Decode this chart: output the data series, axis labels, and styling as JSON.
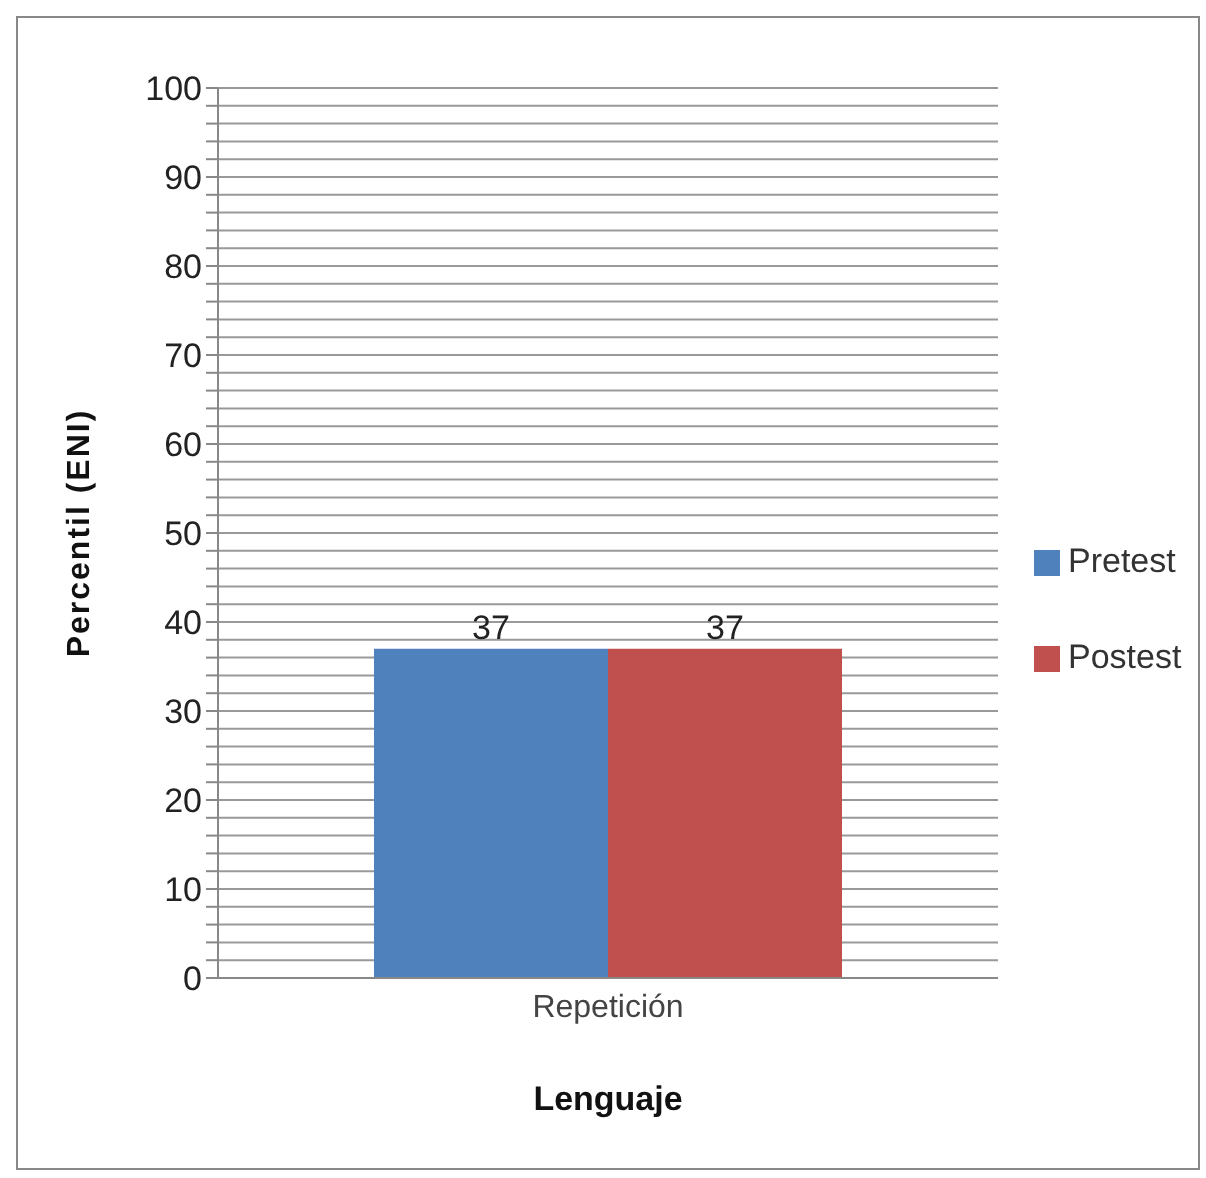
{
  "chart_data": {
    "type": "bar",
    "xlabel": "Lenguaje",
    "ylabel": "Percentil (ENI)",
    "categories": [
      "Repetición"
    ],
    "series": [
      {
        "name": "Pretest",
        "color": "#4f81bd",
        "values": [
          37
        ]
      },
      {
        "name": "Postest",
        "color": "#c0504d",
        "values": [
          37
        ]
      }
    ],
    "ylim": [
      0,
      100
    ],
    "yticks": [
      0,
      {
        "value": 2,
        "label": null
      },
      {
        "value": 4,
        "label": null
      },
      {
        "value": 6,
        "label": null
      },
      {
        "value": 8,
        "label": null
      },
      10,
      {
        "value": 12,
        "label": null
      },
      {
        "value": 14,
        "label": null
      },
      {
        "value": 16,
        "label": null
      },
      {
        "value": 18,
        "label": null
      },
      20,
      {
        "value": 22,
        "label": null
      },
      {
        "value": 24,
        "label": null
      },
      {
        "value": 26,
        "label": null
      },
      {
        "value": 28,
        "label": null
      },
      30,
      {
        "value": 32,
        "label": null
      },
      {
        "value": 34,
        "label": null
      },
      {
        "value": 36,
        "label": null
      },
      {
        "value": 38,
        "label": null
      },
      40,
      {
        "value": 42,
        "label": null
      },
      {
        "value": 44,
        "label": null
      },
      {
        "value": 46,
        "label": null
      },
      {
        "value": 48,
        "label": null
      },
      50,
      {
        "value": 52,
        "label": null
      },
      {
        "value": 54,
        "label": null
      },
      {
        "value": 56,
        "label": null
      },
      {
        "value": 58,
        "label": null
      },
      60,
      {
        "value": 62,
        "label": null
      },
      {
        "value": 64,
        "label": null
      },
      {
        "value": 66,
        "label": null
      },
      {
        "value": 68,
        "label": null
      },
      70,
      {
        "value": 72,
        "label": null
      },
      {
        "value": 74,
        "label": null
      },
      {
        "value": 76,
        "label": null
      },
      {
        "value": 78,
        "label": null
      },
      80,
      {
        "value": 82,
        "label": null
      },
      {
        "value": 84,
        "label": null
      },
      {
        "value": 86,
        "label": null
      },
      {
        "value": 88,
        "label": null
      },
      90,
      {
        "value": 92,
        "label": null
      },
      {
        "value": 94,
        "label": null
      },
      {
        "value": 96,
        "label": null
      },
      {
        "value": 98,
        "label": null
      },
      100
    ],
    "grid": "y",
    "legend": "right",
    "data_labels": true
  }
}
